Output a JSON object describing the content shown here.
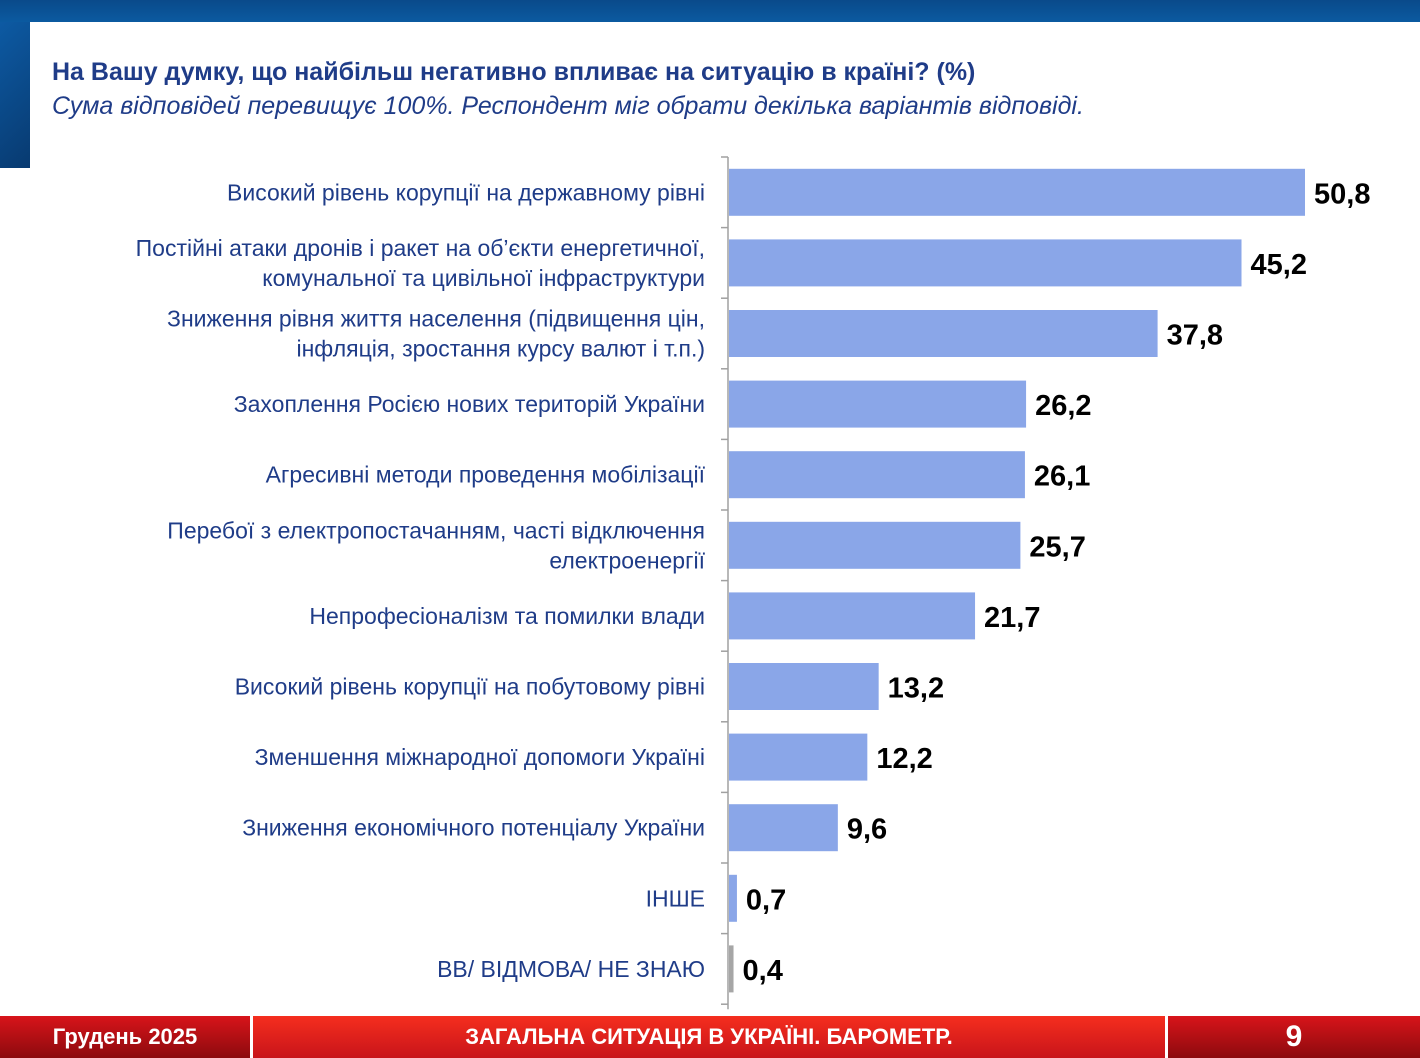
{
  "header": {
    "title": "На Вашу думку, що найбільш негативно впливає на ситуацію в країні? (%)",
    "subtitle": "Сума відповідей перевищує 100%. Респондент міг обрати декілька варіантів відповіді."
  },
  "chart_data": {
    "type": "bar",
    "orientation": "horizontal",
    "title": "На Вашу думку, що найбільш негативно впливає на ситуацію в країні? (%)",
    "categories": [
      [
        "Високий рівень корупції на державному рівні"
      ],
      [
        "Постійні атаки дронів і ракет на об’єкти енергетичної,",
        "комунальної та цивільної інфраструктури"
      ],
      [
        "Зниження рівня життя населення (підвищення цін,",
        "інфляція, зростання курсу валют і т.п.)"
      ],
      [
        "Захоплення Росією нових територій України"
      ],
      [
        "Агресивні методи проведення мобілізації"
      ],
      [
        "Перебої з електропостачанням, часті відключення",
        "електроенергії"
      ],
      [
        "Непрофесіоналізм та помилки влади"
      ],
      [
        "Високий рівень корупції на побутовому рівні"
      ],
      [
        "Зменшення міжнародної допомоги Україні"
      ],
      [
        "Зниження економічного потенціалу України"
      ],
      [
        "ІНШЕ"
      ],
      [
        "ВВ/ ВІДМОВА/ НЕ ЗНАЮ"
      ]
    ],
    "value_labels": [
      "50,8",
      "45,2",
      "37,8",
      "26,2",
      "26,1",
      "25,7",
      "21,7",
      "13,2",
      "12,2",
      "9,6",
      "0,7",
      "0,4"
    ],
    "values": [
      50.8,
      45.2,
      37.8,
      26.2,
      26.1,
      25.7,
      21.7,
      13.2,
      12.2,
      9.6,
      0.7,
      0.4
    ],
    "colors": [
      "#8aa6e8",
      "#8aa6e8",
      "#8aa6e8",
      "#8aa6e8",
      "#8aa6e8",
      "#8aa6e8",
      "#8aa6e8",
      "#8aa6e8",
      "#8aa6e8",
      "#8aa6e8",
      "#8aa6e8",
      "#a6a6a6"
    ],
    "xlim": [
      0,
      50.8
    ],
    "grid": false,
    "legend": "none"
  },
  "footer": {
    "date": "Грудень 2025",
    "section": "ЗАГАЛЬНА СИТУАЦІЯ В УКРАЇНІ. БАРОМЕТР.",
    "page": "9"
  }
}
